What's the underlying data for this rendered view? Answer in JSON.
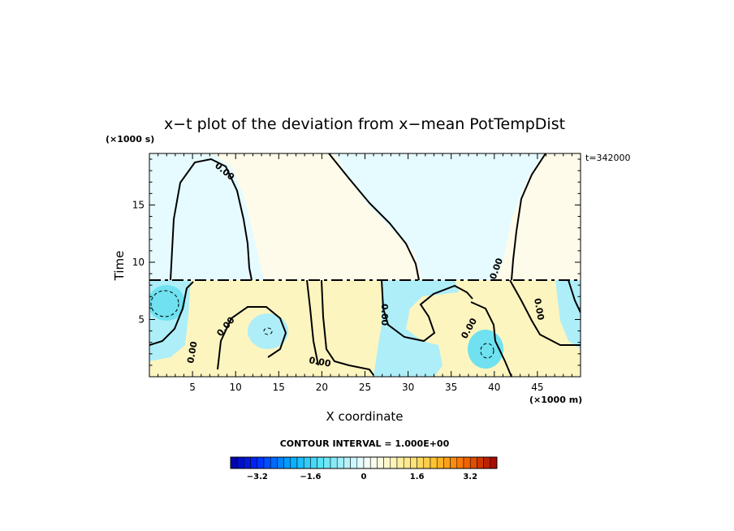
{
  "chart_data": {
    "type": "heatmap",
    "title": "x−t plot of the deviation from x−mean PotTempDist",
    "xlabel": "X coordinate",
    "ylabel": "Time",
    "x_units": "(×1000 m)",
    "y_units": "(×1000 s)",
    "time_stamp": "t=342000",
    "xlim": [
      0,
      50
    ],
    "ylim": [
      0,
      19.5
    ],
    "x_ticks": [
      5,
      10,
      15,
      20,
      25,
      30,
      35,
      40,
      45
    ],
    "x_tick_labels": [
      "5",
      "10",
      "15",
      "20",
      "25",
      "30",
      "35",
      "40",
      "45"
    ],
    "y_ticks": [
      5,
      10,
      15
    ],
    "y_tick_labels": [
      "5",
      "10",
      "15"
    ],
    "contour_interval_text": "CONTOUR INTERVAL = 1.000E+00",
    "contour_labels": [
      "0.00",
      "0.00",
      "0.00",
      "0.00",
      "0.00",
      "0.00",
      "0.00",
      "0.00",
      "0.00",
      "0.00"
    ],
    "colorbar": {
      "min": -4,
      "max": 4,
      "step": 0.2,
      "tick_values": [
        -3.2,
        -1.6,
        0,
        1.6,
        3.2
      ],
      "tick_labels": [
        "−3.2",
        "−1.6",
        "0",
        "1.6",
        "3.2"
      ]
    },
    "colors": {
      "negative_light": "#e6fbff",
      "negative_mid": "#aeeef8",
      "negative_strong": "#6fe1f0",
      "positive_light": "#fffbea",
      "positive_mid": "#fdf5c0",
      "contour": "#000000"
    }
  }
}
